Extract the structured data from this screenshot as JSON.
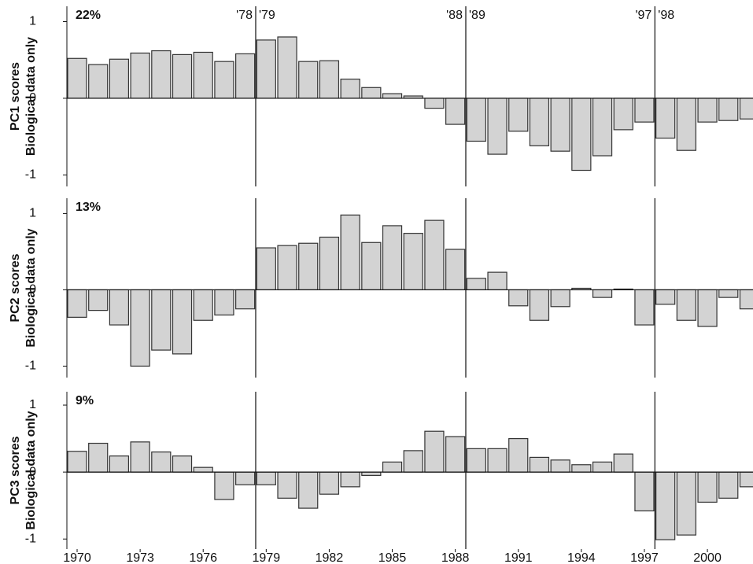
{
  "chart_data": [
    {
      "type": "bar",
      "ylabel": [
        "PC1 scores",
        "Biological data only"
      ],
      "annotation": "22%",
      "x": [
        1970,
        1971,
        1972,
        1973,
        1974,
        1975,
        1976,
        1977,
        1978,
        1979,
        1980,
        1981,
        1982,
        1983,
        1984,
        1985,
        1986,
        1987,
        1988,
        1989,
        1990,
        1991,
        1992,
        1993,
        1994,
        1995,
        1996,
        1997,
        1998,
        1999,
        2000,
        2001,
        2002
      ],
      "values": [
        0.52,
        0.44,
        0.51,
        0.59,
        0.62,
        0.57,
        0.6,
        0.48,
        0.58,
        0.76,
        0.8,
        0.48,
        0.49,
        0.25,
        0.14,
        0.06,
        0.03,
        -0.13,
        -0.34,
        -0.56,
        -0.73,
        -0.43,
        -0.62,
        -0.69,
        -0.94,
        -0.75,
        -0.41,
        -0.31,
        -0.52,
        -0.68,
        -0.31,
        -0.29,
        -0.27
      ],
      "color": "#d3d3d3",
      "xlim": [
        1969.55,
        2002.17
      ],
      "ylim": [
        -1.15,
        1.2
      ],
      "yticks": [
        -1,
        0,
        1
      ],
      "vlines": [
        1978.5,
        1988.5,
        1997.5
      ],
      "vline_labels": [
        [
          "'78",
          "'79"
        ],
        [
          "'88",
          "'89"
        ],
        [
          "'97",
          "'98"
        ]
      ]
    },
    {
      "type": "bar",
      "ylabel": [
        "PC2 scores",
        "Biological data only"
      ],
      "annotation": "13%",
      "x": [
        1970,
        1971,
        1972,
        1973,
        1974,
        1975,
        1976,
        1977,
        1978,
        1979,
        1980,
        1981,
        1982,
        1983,
        1984,
        1985,
        1986,
        1987,
        1988,
        1989,
        1990,
        1991,
        1992,
        1993,
        1994,
        1995,
        1996,
        1997,
        1998,
        1999,
        2000,
        2001,
        2002
      ],
      "values": [
        -0.36,
        -0.27,
        -0.46,
        -1.0,
        -0.79,
        -0.84,
        -0.4,
        -0.33,
        -0.25,
        0.55,
        0.58,
        0.61,
        0.69,
        0.98,
        0.62,
        0.84,
        0.74,
        0.91,
        0.53,
        0.15,
        0.23,
        -0.21,
        -0.4,
        -0.22,
        0.02,
        -0.1,
        0.01,
        -0.46,
        -0.19,
        -0.4,
        -0.48,
        -0.1,
        -0.25
      ],
      "color": "#d3d3d3",
      "xlim": [
        1969.55,
        2002.17
      ],
      "ylim": [
        -1.15,
        1.2
      ],
      "yticks": [
        -1,
        0,
        1
      ],
      "vlines": [
        1978.5,
        1988.5,
        1997.5
      ]
    },
    {
      "type": "bar",
      "ylabel": [
        "PC3 scores",
        "Biological data only"
      ],
      "annotation": "9%",
      "x": [
        1970,
        1971,
        1972,
        1973,
        1974,
        1975,
        1976,
        1977,
        1978,
        1979,
        1980,
        1981,
        1982,
        1983,
        1984,
        1985,
        1986,
        1987,
        1988,
        1989,
        1990,
        1991,
        1992,
        1993,
        1994,
        1995,
        1996,
        1997,
        1998,
        1999,
        2000,
        2001,
        2002
      ],
      "values": [
        0.31,
        0.43,
        0.24,
        0.45,
        0.3,
        0.24,
        0.07,
        -0.41,
        -0.19,
        -0.19,
        -0.39,
        -0.54,
        -0.33,
        -0.22,
        -0.05,
        0.15,
        0.32,
        0.61,
        0.53,
        0.35,
        0.35,
        0.5,
        0.22,
        0.18,
        0.11,
        0.15,
        0.27,
        -0.58,
        -1.01,
        -0.94,
        -0.45,
        -0.39,
        -0.22
      ],
      "color": "#d3d3d3",
      "xlim": [
        1969.55,
        2002.17
      ],
      "ylim": [
        -1.15,
        1.2
      ],
      "yticks": [
        -1,
        0,
        1
      ],
      "vlines": [
        1978.5,
        1988.5,
        1997.5
      ],
      "xticks": [
        1970,
        1973,
        1976,
        1979,
        1982,
        1985,
        1988,
        1991,
        1994,
        1997,
        2000
      ]
    }
  ]
}
